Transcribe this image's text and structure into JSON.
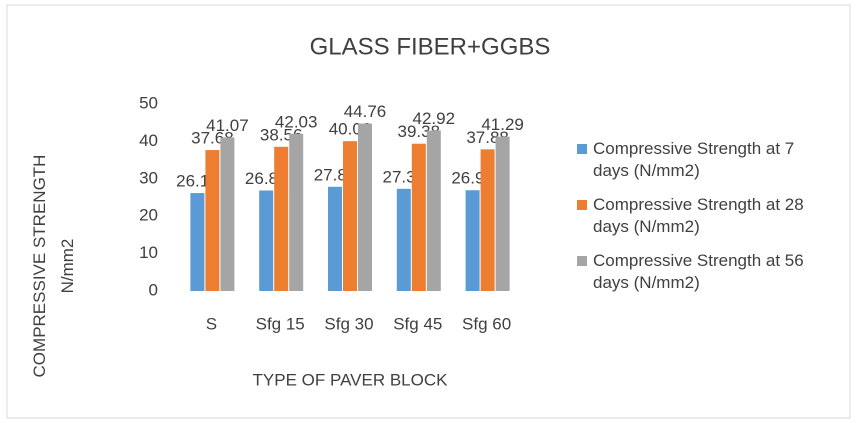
{
  "chart_data": {
    "type": "bar",
    "title": "GLASS FIBER+GGBS",
    "x_label": "TYPE OF PAVER BLOCK",
    "y_label": "COMPRESSIVE STRENGTH N/mm2",
    "categories": [
      "S",
      "Sfg 15",
      "Sfg 30",
      "Sfg 45",
      "Sfg 60"
    ],
    "series": [
      {
        "name": "Compressive Strength at 7 days (N/mm2)",
        "color": "#5b9bd5",
        "values": [
          26.19,
          26.87,
          27.86,
          27.32,
          26.94
        ]
      },
      {
        "name": "Compressive Strength at 28 days (N/mm2)",
        "color": "#ed7d31",
        "values": [
          37.68,
          38.56,
          40.06,
          39.38,
          37.88
        ]
      },
      {
        "name": "Compressive Strength at 56 days (N/mm2)",
        "color": "#a5a5a5",
        "values": [
          41.07,
          42.03,
          44.76,
          42.92,
          41.29
        ]
      }
    ],
    "ylim": [
      0,
      50
    ],
    "yticks": [
      0,
      10,
      20,
      30,
      40,
      50
    ],
    "grid": false,
    "legend": "right"
  }
}
